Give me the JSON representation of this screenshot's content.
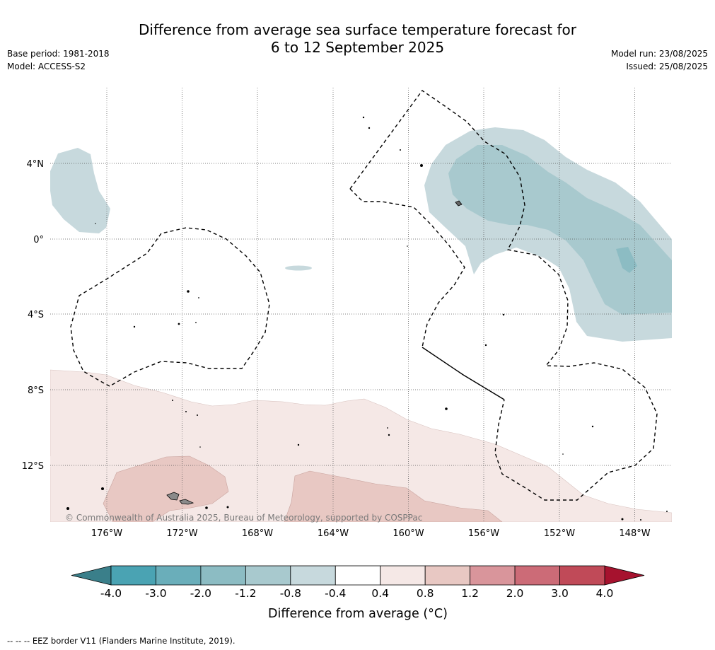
{
  "header": {
    "title_line1": "Difference from average sea surface temperature forecast for",
    "title_line2": "6 to 12 September 2025",
    "base_period": "Base period: 1981-2018",
    "model": "Model: ACCESS-S2",
    "model_run": "Model run: 23/08/2025",
    "issued": "Issued: 25/08/2025"
  },
  "copyright": "© Commonwealth of Australia 2025, Bureau of Meteorology, supported by COSPPac",
  "footer_note": "--  --  -- EEZ border V11 (Flanders Marine Institute, 2019).",
  "chart_data": {
    "type": "heatmap",
    "lon_ticks": [
      -176,
      -172,
      -168,
      -164,
      -160,
      -156,
      -152,
      -148
    ],
    "lon_labels": [
      "176°W",
      "172°W",
      "168°W",
      "164°W",
      "160°W",
      "156°W",
      "152°W",
      "148°W"
    ],
    "lat_ticks": [
      4,
      0,
      -4,
      -8,
      -12
    ],
    "lat_labels": [
      "4°N",
      "0°",
      "4°S",
      "8°S",
      "12°S"
    ],
    "xlim": [
      -179,
      -146
    ],
    "ylim": [
      -15,
      8
    ],
    "grid": true,
    "colorbar": {
      "label": "Difference from average (°C)",
      "boundaries": [
        -4.0,
        -3.0,
        -2.0,
        -1.2,
        -0.8,
        -0.4,
        0.4,
        0.8,
        1.2,
        2.0,
        3.0,
        4.0
      ],
      "tick_labels": [
        "-4.0",
        "-3.0",
        "-2.0",
        "-1.2",
        "-0.8",
        "-0.4",
        "0.4",
        "0.8",
        "1.2",
        "2.0",
        "3.0",
        "4.0"
      ],
      "colors": [
        "#4aa3b3",
        "#6aaeba",
        "#8cbcc3",
        "#a8c9ce",
        "#c7d9dd",
        "#ffffff",
        "#f5e8e6",
        "#e8c8c3",
        "#d9959b",
        "#cc6b77",
        "#c04a58"
      ],
      "under_color": "#3a7f8a",
      "over_color": "#a6122e"
    },
    "regions": [
      {
        "class": "-0.8 to -0.4",
        "color": "#c7d9dd",
        "area": "west of 176°W, 0° to 5°N"
      },
      {
        "class": "-0.8 to -0.4",
        "color": "#c7d9dd",
        "area": "158°W to 146°W, 5°N to 5.5°S"
      },
      {
        "class": "-1.2 to -0.8",
        "color": "#a8c9ce",
        "area": "157°W to 146°W, 3.5°N to 4°S"
      },
      {
        "class": "-2.0 to -1.2",
        "color": "#8cbcc3",
        "area": "near 149.5°W, 0.5°S"
      },
      {
        "class": "0.4 to 0.8",
        "color": "#f5e8e6",
        "area": "south of 7°S across the domain"
      },
      {
        "class": "0.8 to 1.2",
        "color": "#e8c8c3",
        "area": "174°W to 170°W and 163°W to 155°W, south of 12°S"
      }
    ]
  }
}
